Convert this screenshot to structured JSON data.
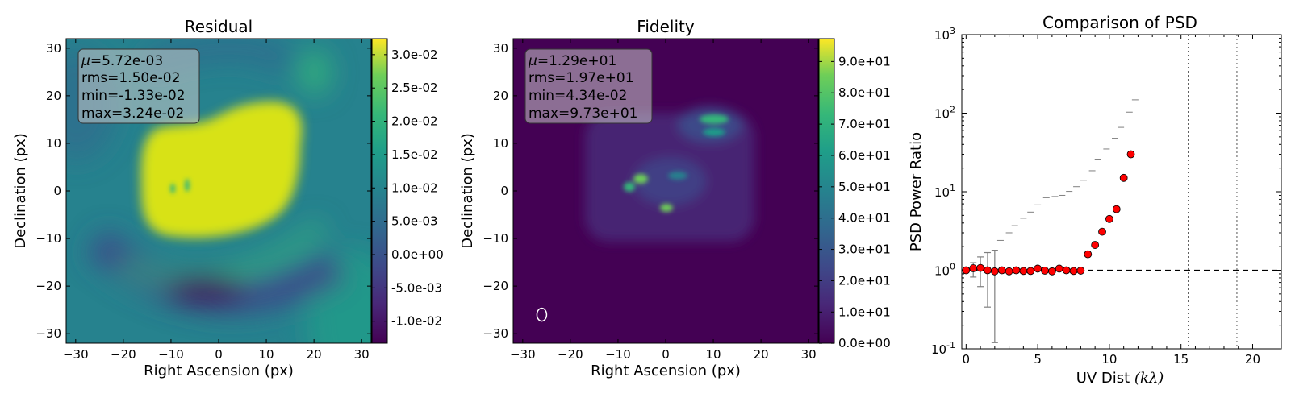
{
  "colors": {
    "viridis_dark": "#440154",
    "viridis_teal": "#21918c",
    "viridis_yellow": "#fde725",
    "marker_red": "#ff0000",
    "errorbar": "#7f7f7f"
  },
  "chart_data": [
    {
      "type": "heatmap",
      "title": "Residual",
      "xlabel": "Right Ascension (px)",
      "ylabel": "Declination (px)",
      "xlim": [
        -32,
        32
      ],
      "ylim": [
        -32,
        32
      ],
      "xticks": [
        -30,
        -20,
        -10,
        0,
        10,
        20,
        30
      ],
      "yticks": [
        -30,
        -20,
        -10,
        0,
        10,
        20,
        30
      ],
      "colormap": "viridis",
      "clim": [
        -0.0133,
        0.0324
      ],
      "colorbar_ticks": [
        "-1.0e-02",
        "-5.0e-03",
        "0.0e+00",
        "5.0e-03",
        "1.0e-02",
        "1.5e-02",
        "2.0e-02",
        "2.5e-02",
        "3.0e-02"
      ],
      "colorbar_values": [
        -0.01,
        -0.005,
        0.0,
        0.005,
        0.01,
        0.015,
        0.02,
        0.025,
        0.03
      ],
      "stats_mu_symbol": "μ",
      "stats": [
        "=5.72e-03",
        "rms=1.50e-02",
        "min=-1.33e-02",
        "max=3.24e-02"
      ]
    },
    {
      "type": "heatmap",
      "title": "Fidelity",
      "xlabel": "Right Ascension (px)",
      "ylabel": "Declination (px)",
      "xlim": [
        -32,
        32
      ],
      "ylim": [
        -32,
        32
      ],
      "xticks": [
        -30,
        -20,
        -10,
        0,
        10,
        20,
        30
      ],
      "yticks": [
        -30,
        -20,
        -10,
        0,
        10,
        20,
        30
      ],
      "colormap": "viridis",
      "clim": [
        0.0434,
        97.3
      ],
      "colorbar_ticks": [
        "0.0e+00",
        "1.0e+01",
        "2.0e+01",
        "3.0e+01",
        "4.0e+01",
        "5.0e+01",
        "6.0e+01",
        "7.0e+01",
        "8.0e+01",
        "9.0e+01"
      ],
      "colorbar_values": [
        0,
        10,
        20,
        30,
        40,
        50,
        60,
        70,
        80,
        90
      ],
      "stats_mu_symbol": "μ",
      "stats": [
        "=1.29e+01",
        "rms=1.97e+01",
        "min=4.34e-02",
        "max=9.73e+01"
      ],
      "beam_center": [
        -26,
        -26
      ]
    },
    {
      "type": "scatter",
      "title": "Comparison of PSD",
      "xlabel": "UV Dist ",
      "xlabel_math": "(kλ)",
      "ylabel": "PSD Power Ratio",
      "xlim": [
        -0.3,
        22
      ],
      "ylim": [
        0.1,
        1000
      ],
      "yscale": "log",
      "grid": false,
      "xticks": [
        0,
        5,
        10,
        15,
        20
      ],
      "yticks": [
        {
          "value": 0.1,
          "base": "10",
          "exp": "-1"
        },
        {
          "value": 1,
          "base": "10",
          "exp": "0"
        },
        {
          "value": 10,
          "base": "10",
          "exp": "1"
        },
        {
          "value": 100,
          "base": "10",
          "exp": "2"
        },
        {
          "value": 1000,
          "base": "10",
          "exp": "3"
        }
      ],
      "reference_line_y": 1,
      "vertical_lines_x": [
        15.5,
        18.9
      ],
      "points": [
        {
          "x": 0.0,
          "y": 1.0,
          "err": [
            0.95,
            1.05
          ]
        },
        {
          "x": 0.5,
          "y": 1.06,
          "err": [
            0.82,
            1.25
          ]
        },
        {
          "x": 1.0,
          "y": 1.07,
          "err": [
            0.62,
            1.48
          ]
        },
        {
          "x": 1.5,
          "y": 1.0,
          "err": [
            0.34,
            1.68
          ]
        },
        {
          "x": 2.0,
          "y": 0.97,
          "err": [
            0.12,
            1.8
          ]
        },
        {
          "x": 2.5,
          "y": 1.0
        },
        {
          "x": 3.0,
          "y": 0.97
        },
        {
          "x": 3.5,
          "y": 1.0
        },
        {
          "x": 4.0,
          "y": 0.98
        },
        {
          "x": 4.5,
          "y": 0.98
        },
        {
          "x": 5.0,
          "y": 1.05
        },
        {
          "x": 5.5,
          "y": 0.99
        },
        {
          "x": 6.0,
          "y": 0.97
        },
        {
          "x": 6.5,
          "y": 1.05
        },
        {
          "x": 7.0,
          "y": 1.0
        },
        {
          "x": 7.5,
          "y": 0.98
        },
        {
          "x": 8.0,
          "y": 0.99
        },
        {
          "x": 8.5,
          "y": 1.6
        },
        {
          "x": 9.0,
          "y": 2.1
        },
        {
          "x": 9.5,
          "y": 3.1
        },
        {
          "x": 10.0,
          "y": 4.5
        },
        {
          "x": 10.5,
          "y": 6.0
        },
        {
          "x": 11.0,
          "y": 15.0
        },
        {
          "x": 11.5,
          "y": 30.0
        }
      ],
      "upper_markers": [
        {
          "x": 2.4,
          "y": 2.4
        },
        {
          "x": 3.0,
          "y": 3.0
        },
        {
          "x": 3.4,
          "y": 3.7
        },
        {
          "x": 4.0,
          "y": 4.6
        },
        {
          "x": 4.5,
          "y": 5.5
        },
        {
          "x": 5.0,
          "y": 6.8
        },
        {
          "x": 5.6,
          "y": 8.4
        },
        {
          "x": 6.2,
          "y": 8.7
        },
        {
          "x": 6.7,
          "y": 9.0
        },
        {
          "x": 7.2,
          "y": 10.1
        },
        {
          "x": 7.7,
          "y": 11.6
        },
        {
          "x": 8.2,
          "y": 14.0
        },
        {
          "x": 8.8,
          "y": 18.5
        },
        {
          "x": 9.2,
          "y": 26.0
        },
        {
          "x": 9.8,
          "y": 35.0
        },
        {
          "x": 10.4,
          "y": 48.0
        },
        {
          "x": 10.8,
          "y": 66.0
        },
        {
          "x": 11.4,
          "y": 103.0
        },
        {
          "x": 11.8,
          "y": 148.0
        }
      ]
    }
  ]
}
